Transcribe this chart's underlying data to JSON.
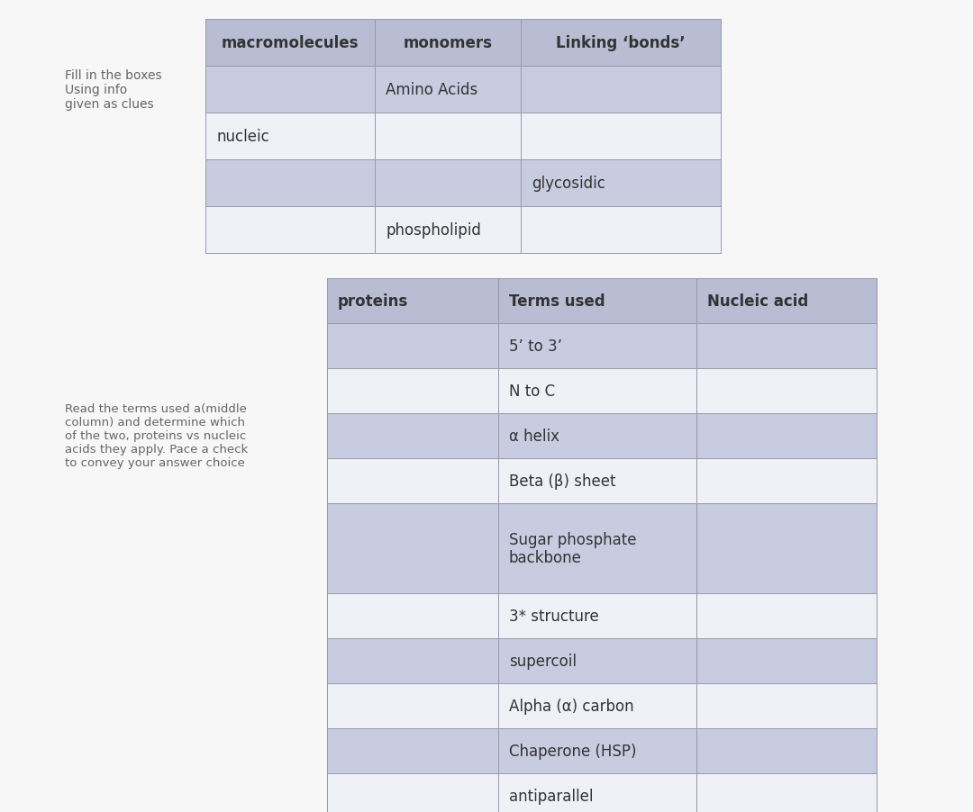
{
  "bg_color": "#f7f7f7",
  "header_color": "#b8bdd4",
  "row_alt_color": "#c8cce0",
  "row_plain_color": "#f0f1f7",
  "border_color": "#9999aa",
  "text_color": "#333333",
  "header_text_color": "#333333",
  "table1": {
    "headers": [
      "macromolecules",
      "monomers",
      "Linking ‘bonds’"
    ],
    "rows": [
      [
        "",
        "Amino Acids",
        ""
      ],
      [
        "nucleic",
        "",
        ""
      ],
      [
        "",
        "",
        "glycosidic"
      ],
      [
        "",
        "phospholipid",
        ""
      ]
    ],
    "row_shaded": [
      true,
      false,
      true,
      false
    ],
    "left_label": "Fill in the boxes\nUsing info\ngiven as clues",
    "col_aligns": [
      "left",
      "left",
      "left"
    ],
    "cell_text_col": [
      0,
      1,
      2
    ]
  },
  "table2": {
    "headers": [
      "proteins",
      "Terms used",
      "Nucleic acid"
    ],
    "rows": [
      [
        "",
        "5’ to 3’",
        ""
      ],
      [
        "",
        "N to C",
        ""
      ],
      [
        "",
        "α helix",
        ""
      ],
      [
        "",
        "Beta (β) sheet",
        ""
      ],
      [
        "",
        "Sugar phosphate\nbackbone",
        ""
      ],
      [
        "",
        "3* structure",
        ""
      ],
      [
        "",
        "supercoil",
        ""
      ],
      [
        "",
        "Alpha (α) carbon",
        ""
      ],
      [
        "",
        "Chaperone (HSP)",
        ""
      ],
      [
        "",
        "antiparallel",
        ""
      ]
    ],
    "row_shaded": [
      true,
      false,
      true,
      false,
      true,
      false,
      true,
      false,
      true,
      false
    ],
    "left_label": "Read the terms used a(middle\ncolumn) and determine which\nof the two, proteins vs nucleic\nacids they apply. Pace a check\nto convey your answer choice"
  }
}
